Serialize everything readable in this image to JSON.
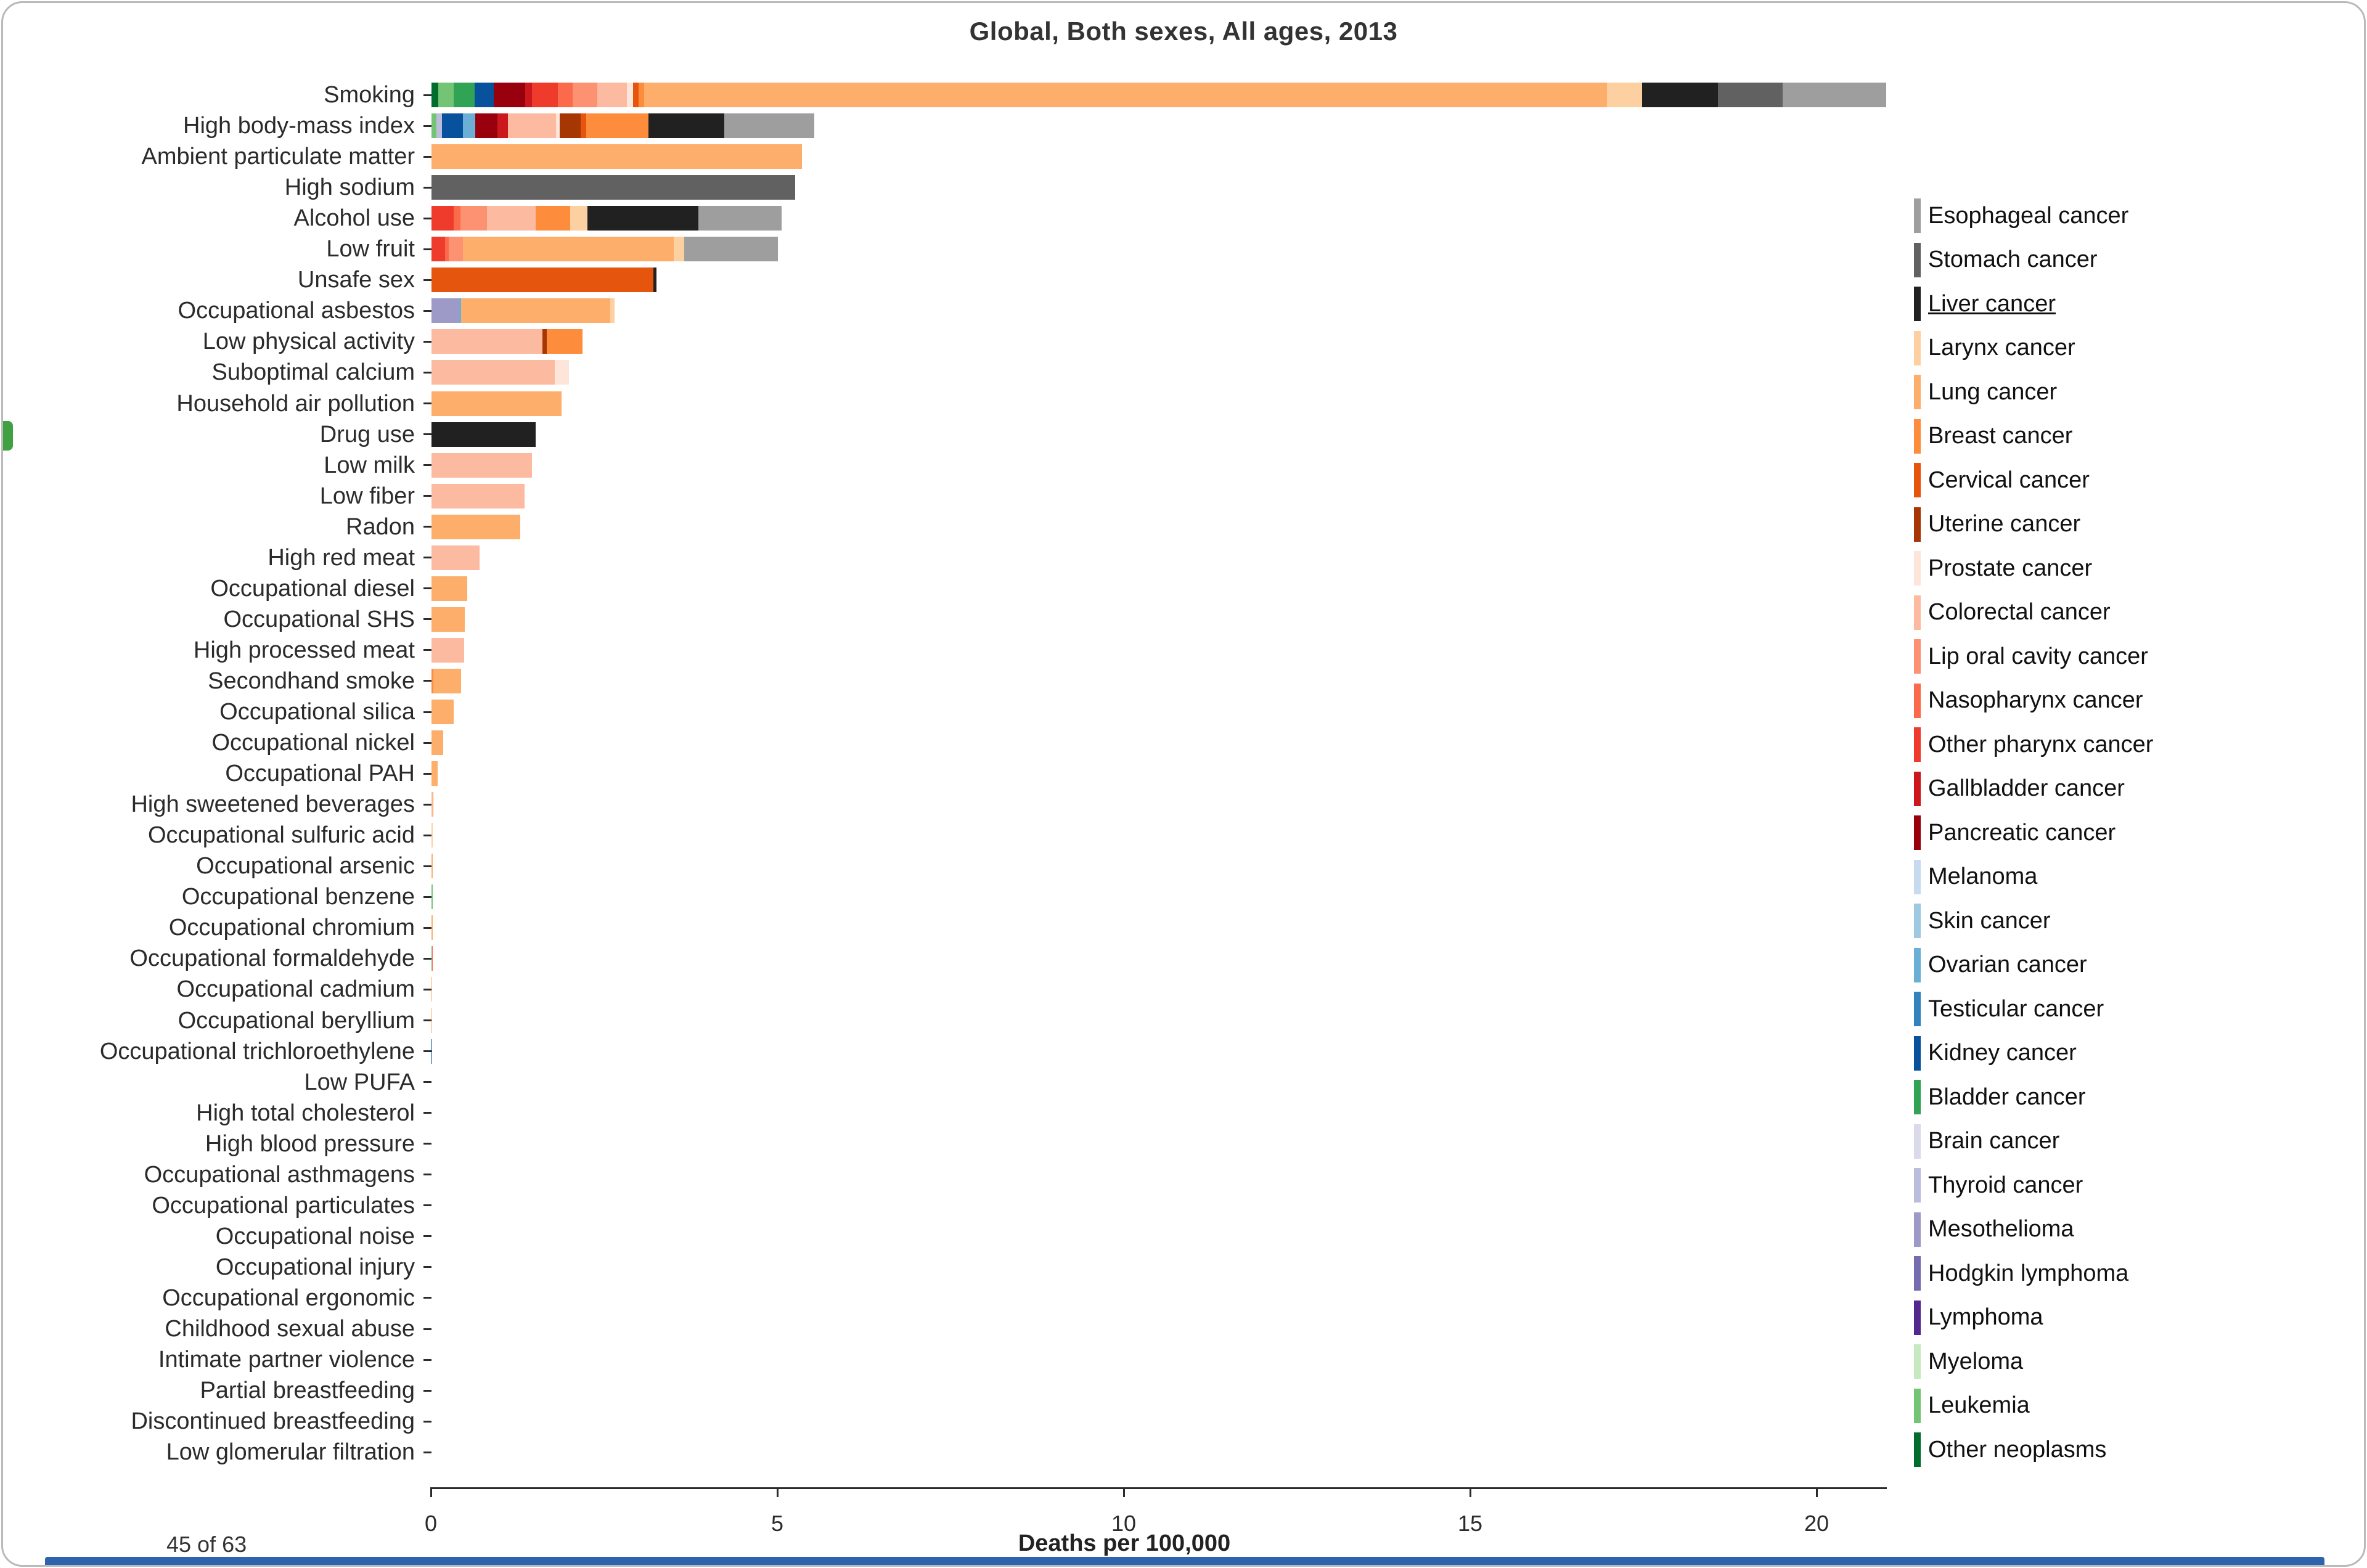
{
  "title": "Global, Both sexes, All ages, 2013",
  "status": {
    "count_label": "45 of 63"
  },
  "side_panel_handle": {
    "color": "#3fa142"
  },
  "bottom_bar": {
    "color": "#2e63ad"
  },
  "chart_data": {
    "type": "bar",
    "orientation": "horizontal",
    "stacked": true,
    "title": "Global, Both sexes, All ages, 2013",
    "xlabel": "Deaths per 100,000",
    "ylabel": "",
    "xlim": [
      0,
      21.3
    ],
    "xticks": [
      0,
      5,
      10,
      15,
      20
    ],
    "grid": false,
    "legend_position": "right",
    "cancers": [
      {
        "name": "Esophageal cancer",
        "color": "#9e9e9e",
        "selected": false
      },
      {
        "name": "Stomach cancer",
        "color": "#616161",
        "selected": false
      },
      {
        "name": "Liver cancer",
        "color": "#212121",
        "selected": true
      },
      {
        "name": "Larynx cancer",
        "color": "#fdd0a2",
        "selected": false
      },
      {
        "name": "Lung cancer",
        "color": "#fdae6b",
        "selected": false
      },
      {
        "name": "Breast cancer",
        "color": "#fd8d3c",
        "selected": false
      },
      {
        "name": "Cervical cancer",
        "color": "#e6550d",
        "selected": false
      },
      {
        "name": "Uterine cancer",
        "color": "#a63603",
        "selected": false
      },
      {
        "name": "Prostate cancer",
        "color": "#fee5d9",
        "selected": false
      },
      {
        "name": "Colorectal cancer",
        "color": "#fcbba1",
        "selected": false
      },
      {
        "name": "Lip oral cavity cancer",
        "color": "#fc9272",
        "selected": false
      },
      {
        "name": "Nasopharynx cancer",
        "color": "#fb6a4a",
        "selected": false
      },
      {
        "name": "Other pharynx cancer",
        "color": "#ef3b2c",
        "selected": false
      },
      {
        "name": "Gallbladder cancer",
        "color": "#cb181d",
        "selected": false
      },
      {
        "name": "Pancreatic cancer",
        "color": "#99000d",
        "selected": false
      },
      {
        "name": "Melanoma",
        "color": "#c6dbef",
        "selected": false
      },
      {
        "name": "Skin cancer",
        "color": "#9ecae1",
        "selected": false
      },
      {
        "name": "Ovarian cancer",
        "color": "#6baed6",
        "selected": false
      },
      {
        "name": "Testicular cancer",
        "color": "#3182bd",
        "selected": false
      },
      {
        "name": "Kidney cancer",
        "color": "#08519c",
        "selected": false
      },
      {
        "name": "Bladder cancer",
        "color": "#31a354",
        "selected": false
      },
      {
        "name": "Brain cancer",
        "color": "#dadaeb",
        "selected": false
      },
      {
        "name": "Thyroid cancer",
        "color": "#bcbddc",
        "selected": false
      },
      {
        "name": "Mesothelioma",
        "color": "#9e9ac8",
        "selected": false
      },
      {
        "name": "Hodgkin lymphoma",
        "color": "#756bb1",
        "selected": false
      },
      {
        "name": "Lymphoma",
        "color": "#54278f",
        "selected": false
      },
      {
        "name": "Myeloma",
        "color": "#c7e9c0",
        "selected": false
      },
      {
        "name": "Leukemia",
        "color": "#74c476",
        "selected": false
      },
      {
        "name": "Other neoplasms",
        "color": "#006d2c",
        "selected": false
      }
    ],
    "risks": [
      {
        "label": "Smoking",
        "segments": {
          "Other neoplasms": 0.1,
          "Leukemia": 0.22,
          "Bladder cancer": 0.3,
          "Kidney cancer": 0.28,
          "Pancreatic cancer": 0.45,
          "Gallbladder cancer": 0.1,
          "Other pharynx cancer": 0.37,
          "Nasopharynx cancer": 0.22,
          "Lip oral cavity cancer": 0.35,
          "Colorectal cancer": 0.43,
          "Prostate cancer": 0.09,
          "Cervical cancer": 0.08,
          "Breast cancer": 0.08,
          "Lung cancer": 13.9,
          "Larynx cancer": 0.5,
          "Liver cancer": 1.1,
          "Stomach cancer": 0.93,
          "Esophageal cancer": 1.5
        }
      },
      {
        "label": "High body-mass index",
        "segments": {
          "Leukemia": 0.07,
          "Thyroid cancer": 0.08,
          "Kidney cancer": 0.3,
          "Ovarian cancer": 0.18,
          "Pancreatic cancer": 0.32,
          "Gallbladder cancer": 0.15,
          "Colorectal cancer": 0.7,
          "Prostate cancer": 0.05,
          "Uterine cancer": 0.3,
          "Cervical cancer": 0.08,
          "Breast cancer": 0.9,
          "Liver cancer": 1.1,
          "Esophageal cancer": 1.3
        }
      },
      {
        "label": "Ambient particulate matter",
        "segments": {
          "Lung cancer": 5.35
        }
      },
      {
        "label": "High sodium",
        "segments": {
          "Stomach cancer": 5.25
        }
      },
      {
        "label": "Alcohol use",
        "segments": {
          "Other pharynx cancer": 0.32,
          "Nasopharynx cancer": 0.1,
          "Lip oral cavity cancer": 0.38,
          "Colorectal cancer": 0.7,
          "Breast cancer": 0.5,
          "Larynx cancer": 0.25,
          "Liver cancer": 1.6,
          "Esophageal cancer": 1.2
        }
      },
      {
        "label": "Low fruit",
        "segments": {
          "Other pharynx cancer": 0.2,
          "Nasopharynx cancer": 0.05,
          "Lip oral cavity cancer": 0.2,
          "Lung cancer": 3.05,
          "Larynx cancer": 0.15,
          "Esophageal cancer": 1.35
        }
      },
      {
        "label": "Unsafe sex",
        "segments": {
          "Cervical cancer": 3.2,
          "Liver cancer": 0.05
        }
      },
      {
        "label": "Occupational asbestos",
        "segments": {
          "Mesothelioma": 0.4,
          "Ovarian cancer": 0.03,
          "Lung cancer": 2.15,
          "Larynx cancer": 0.06
        }
      },
      {
        "label": "Low physical activity",
        "segments": {
          "Colorectal cancer": 1.6,
          "Uterine cancer": 0.06,
          "Breast cancer": 0.52
        }
      },
      {
        "label": "Suboptimal calcium",
        "segments": {
          "Colorectal cancer": 1.78,
          "Prostate cancer": 0.2
        }
      },
      {
        "label": "Household air pollution",
        "segments": {
          "Lung cancer": 1.88
        }
      },
      {
        "label": "Drug use",
        "segments": {
          "Liver cancer": 1.5
        }
      },
      {
        "label": "Low milk",
        "segments": {
          "Colorectal cancer": 1.45
        }
      },
      {
        "label": "Low fiber",
        "segments": {
          "Colorectal cancer": 1.34
        }
      },
      {
        "label": "Radon",
        "segments": {
          "Lung cancer": 1.28
        }
      },
      {
        "label": "High red meat",
        "segments": {
          "Colorectal cancer": 0.69
        }
      },
      {
        "label": "Occupational diesel",
        "segments": {
          "Lung cancer": 0.52
        }
      },
      {
        "label": "Occupational SHS",
        "segments": {
          "Lung cancer": 0.48
        }
      },
      {
        "label": "High processed meat",
        "segments": {
          "Colorectal cancer": 0.47
        }
      },
      {
        "label": "Secondhand smoke",
        "segments": {
          "Lung cancer": 0.4,
          "Breast cancer": 0.03
        }
      },
      {
        "label": "Occupational silica",
        "segments": {
          "Lung cancer": 0.32
        }
      },
      {
        "label": "Occupational nickel",
        "segments": {
          "Lung cancer": 0.17
        }
      },
      {
        "label": "Occupational PAH",
        "segments": {
          "Lung cancer": 0.09
        }
      },
      {
        "label": "High sweetened beverages",
        "segments": {
          "Colorectal cancer": 0.02,
          "Breast cancer": 0.01
        }
      },
      {
        "label": "Occupational sulfuric acid",
        "segments": {
          "Larynx cancer": 0.02
        }
      },
      {
        "label": "Occupational arsenic",
        "segments": {
          "Lung cancer": 0.02
        }
      },
      {
        "label": "Occupational benzene",
        "segments": {
          "Leukemia": 0.02
        }
      },
      {
        "label": "Occupational chromium",
        "segments": {
          "Lung cancer": 0.02
        }
      },
      {
        "label": "Occupational formaldehyde",
        "segments": {
          "Nasopharynx cancer": 0.01,
          "Leukemia": 0.01
        }
      },
      {
        "label": "Occupational cadmium",
        "segments": {
          "Lung cancer": 0.01
        }
      },
      {
        "label": "Occupational beryllium",
        "segments": {
          "Lung cancer": 0.005
        }
      },
      {
        "label": "Occupational trichloroethylene",
        "segments": {
          "Kidney cancer": 0.005
        }
      },
      {
        "label": "Low PUFA",
        "segments": {}
      },
      {
        "label": "High total cholesterol",
        "segments": {}
      },
      {
        "label": "High blood pressure",
        "segments": {}
      },
      {
        "label": "Occupational asthmagens",
        "segments": {}
      },
      {
        "label": "Occupational particulates",
        "segments": {}
      },
      {
        "label": "Occupational noise",
        "segments": {}
      },
      {
        "label": "Occupational injury",
        "segments": {}
      },
      {
        "label": "Occupational ergonomic",
        "segments": {}
      },
      {
        "label": "Childhood sexual abuse",
        "segments": {}
      },
      {
        "label": "Intimate partner violence",
        "segments": {}
      },
      {
        "label": "Partial breastfeeding",
        "segments": {}
      },
      {
        "label": "Discontinued breastfeeding",
        "segments": {}
      },
      {
        "label": "Low glomerular filtration",
        "segments": {}
      }
    ]
  }
}
